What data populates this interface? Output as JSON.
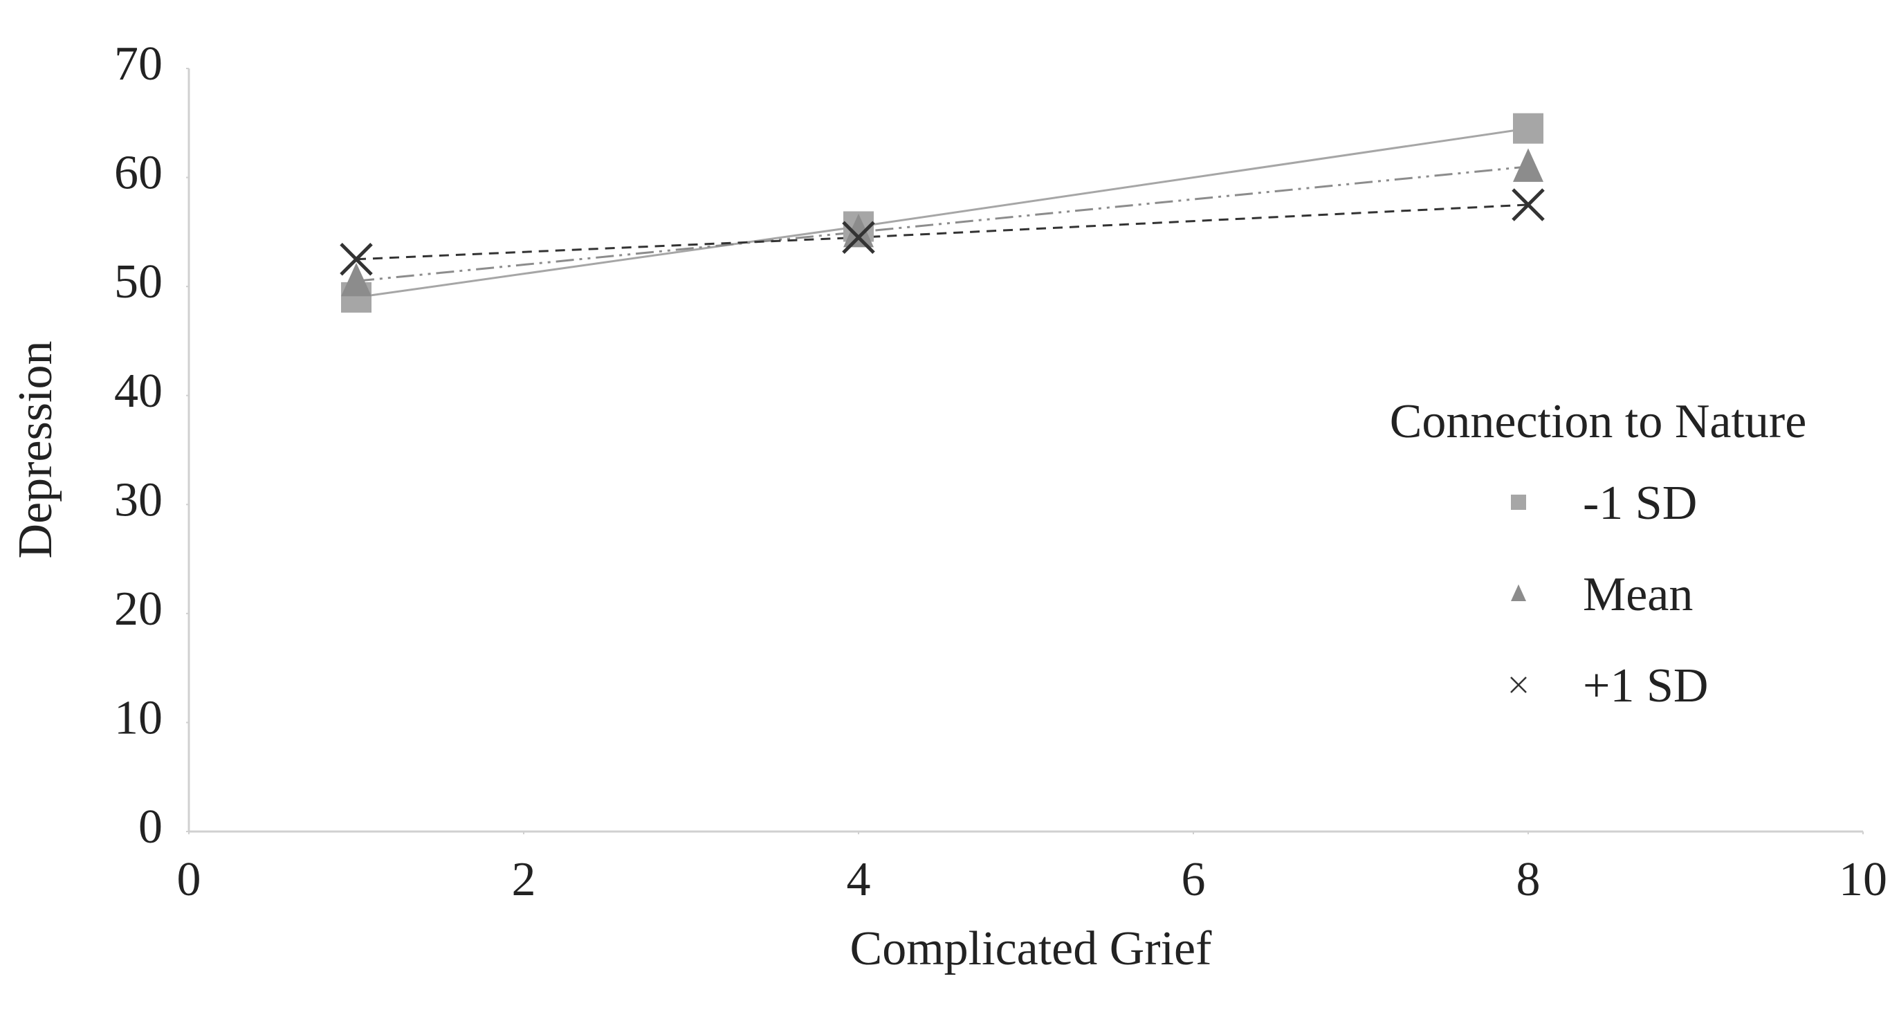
{
  "chart_data": {
    "type": "line",
    "x_label": "Complicated Grief",
    "y_label": "Depression",
    "x": [
      1,
      4,
      8
    ],
    "series": [
      {
        "name": "-1 SD",
        "color": "#a6a6a6",
        "marker": "square",
        "dash": "solid",
        "values": [
          49,
          55.5,
          64.5
        ]
      },
      {
        "name": "Mean",
        "color": "#8c8c8c",
        "marker": "triangle",
        "dash": "dashdotdot",
        "values": [
          50.5,
          55,
          61
        ]
      },
      {
        "name": "+1 SD",
        "color": "#333333",
        "marker": "cross",
        "dash": "dashed",
        "values": [
          52.5,
          54.5,
          57.5
        ]
      }
    ],
    "legend_title": "Connection to Nature",
    "legend_position": "right",
    "xlim": [
      0,
      10
    ],
    "xticks": [
      0,
      2,
      4,
      6,
      8,
      10
    ],
    "ylim": [
      0,
      70
    ],
    "yticks": [
      0,
      10,
      20,
      30,
      40,
      50,
      60,
      70
    ],
    "grid": false
  }
}
